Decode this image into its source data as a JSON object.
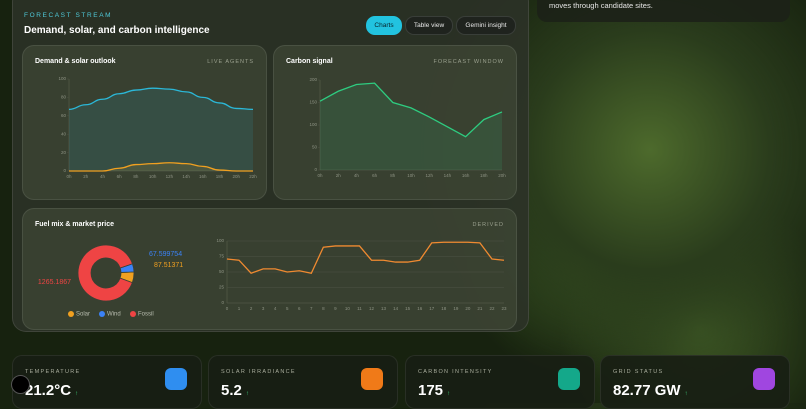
{
  "top_card": {
    "text": "moves through candidate sites."
  },
  "header": {
    "eyebrow": "FORECAST STREAM",
    "title": "Demand, solar, and carbon intelligence"
  },
  "tabs": [
    "Charts",
    "Table view",
    "Gemini insight"
  ],
  "cards": [
    {
      "title": "Demand & solar outlook",
      "tag": "LIVE AGENTS"
    },
    {
      "title": "Carbon signal",
      "tag": "FORECAST WINDOW"
    },
    {
      "title": "Fuel mix & market price",
      "tag": "DERIVED"
    }
  ],
  "chart_data": [
    {
      "type": "line",
      "categories": [
        "0h",
        "2h",
        "4h",
        "6h",
        "8h",
        "10h",
        "12h",
        "14h",
        "16h",
        "18h",
        "20h",
        "22h"
      ],
      "series": [
        {
          "name": "Demand",
          "color": "#2bb8d8",
          "values": [
            67,
            72,
            78,
            84,
            88,
            90,
            89,
            86,
            80,
            74,
            68,
            67
          ]
        },
        {
          "name": "Solar",
          "color": "#f0a020",
          "values": [
            0,
            0,
            0,
            3,
            7,
            8,
            9,
            8,
            5,
            1,
            0,
            0
          ]
        }
      ],
      "ylim": [
        0,
        100
      ],
      "yticks": [
        0,
        20,
        40,
        60,
        80,
        100
      ],
      "grid": false
    },
    {
      "type": "line",
      "categories": [
        "0h",
        "2h",
        "4h",
        "6h",
        "8h",
        "10h",
        "12h",
        "14h",
        "16h",
        "18h",
        "20h"
      ],
      "series": [
        {
          "name": "Carbon",
          "color": "#2ecc80",
          "values": [
            153,
            175,
            190,
            193,
            150,
            138,
            118,
            96,
            74,
            112,
            129
          ]
        }
      ],
      "ylim": [
        0,
        200
      ],
      "yticks": [
        0,
        50,
        100,
        150,
        200
      ],
      "grid": false
    },
    {
      "type": "pie",
      "categories": [
        "Solar",
        "Wind",
        "Fossil"
      ],
      "colors": [
        "#f0a020",
        "#3b82f6",
        "#ef4444"
      ],
      "values": [
        87.51371,
        67.599754,
        1265.1867
      ]
    },
    {
      "type": "line",
      "categories": [
        "0",
        "1",
        "2",
        "3",
        "4",
        "5",
        "6",
        "7",
        "8",
        "9",
        "10",
        "11",
        "12",
        "13",
        "14",
        "15",
        "16",
        "17",
        "18",
        "19",
        "20",
        "21",
        "22",
        "23"
      ],
      "series": [
        {
          "name": "Price",
          "color": "#f08a30",
          "values": [
            71,
            69,
            48,
            55,
            55,
            50,
            52,
            48,
            90,
            92,
            92,
            92,
            69,
            69,
            66,
            66,
            69,
            97,
            98,
            98,
            98,
            97,
            71,
            69
          ]
        }
      ],
      "ylim": [
        0,
        100
      ],
      "yticks": [
        0,
        25,
        50,
        75,
        100
      ],
      "grid": true
    }
  ],
  "kpis": [
    {
      "label": "TEMPERATURE",
      "value": "21.2°C",
      "trend": "↑"
    },
    {
      "label": "SOLAR IRRADIANCE",
      "value": "5.2",
      "trend": "↑"
    },
    {
      "label": "CARBON INTENSITY",
      "value": "175",
      "trend": "↑"
    },
    {
      "label": "GRID STATUS",
      "value": "82.77 GW",
      "trend": "↑"
    }
  ]
}
